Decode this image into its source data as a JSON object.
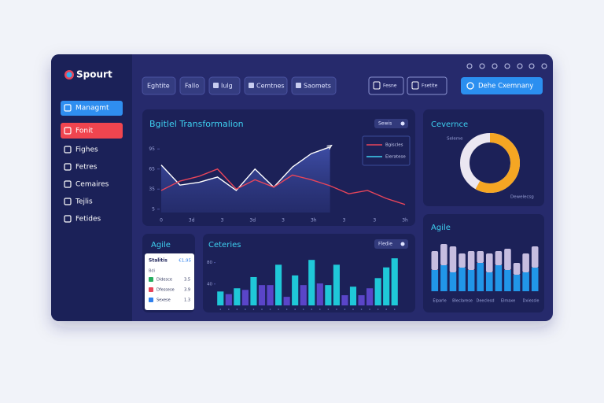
{
  "brand": "Spourt",
  "sidebar": [
    {
      "label": "Managmt",
      "state": "primary"
    },
    {
      "label": "Fonit",
      "state": "alert"
    },
    {
      "label": "Fighes"
    },
    {
      "label": "Fetres"
    },
    {
      "label": "Cemaires"
    },
    {
      "label": "Tejlis"
    },
    {
      "label": "Fetides"
    }
  ],
  "toolbar": {
    "tabs": [
      "Eghtite",
      "Fallo",
      "Iulg",
      "Cemtnes",
      "Saomets"
    ],
    "icon_buttons": [
      "Fesne",
      "Fsetite"
    ],
    "action": "Dehe Cxemnany"
  },
  "line_panel": {
    "title": "Bgitlel  Transformalion",
    "filter": "Sewis",
    "ylim": [
      0,
      100
    ],
    "yticks": [
      5,
      35,
      65,
      95
    ],
    "x_labels": [
      "0",
      "3d",
      "3",
      "3d",
      "3",
      "3h",
      "3",
      "3",
      "3h"
    ],
    "series": [
      {
        "name": "Eleratese",
        "color": "#ffffff",
        "area": true,
        "values": [
          71,
          41,
          45,
          53,
          33,
          65,
          38,
          68,
          88,
          98
        ]
      },
      {
        "name": "Bgiscles",
        "color": "#e8455a",
        "values": [
          33,
          47,
          54,
          65,
          35,
          49,
          38,
          56,
          49,
          40,
          28,
          33,
          21,
          12
        ]
      }
    ]
  },
  "donut_panel": {
    "title": "Cevernce",
    "value": 58,
    "color": "#f5a623",
    "rest_color": "#ebe7f1",
    "labels": [
      "Seleme",
      "Dewelecsg"
    ]
  },
  "agile_card": {
    "title": "Agile",
    "header": "Stalitis",
    "header_value": "€1,95",
    "subheader": "Bdi",
    "rows": [
      {
        "label": "Didesce",
        "value": 3.5,
        "color": "#27ae60"
      },
      {
        "label": "Dfessese",
        "value": 3.9,
        "color": "#e8455a"
      },
      {
        "label": "Sexese",
        "value": 1.3,
        "color": "#2f80ed"
      }
    ]
  },
  "bar_panel": {
    "title": "Ceteries",
    "filter": "Fledie",
    "ylim": [
      0,
      100
    ],
    "yticks": [
      40,
      80
    ],
    "values": [
      26,
      21,
      32,
      29,
      53,
      38,
      38,
      76,
      16,
      56,
      38,
      85,
      41,
      38,
      76,
      19,
      35,
      19,
      32,
      51,
      71,
      88
    ],
    "colors": [
      "#1fc8d8",
      "#5a45c8",
      "#1fc8d8",
      "#5a45c8",
      "#1fc8d8",
      "#5a45c8",
      "#5a45c8",
      "#1fc8d8",
      "#5a45c8",
      "#1fc8d8",
      "#5a45c8",
      "#1fc8d8",
      "#5a45c8",
      "#1fc8d8",
      "#1fc8d8",
      "#5a45c8",
      "#1fc8d8",
      "#5a45c8",
      "#5a45c8",
      "#1fc8d8",
      "#1fc8d8",
      "#1fc8d8"
    ]
  },
  "stack_panel": {
    "title": "Agile",
    "ylim": [
      0,
      100
    ],
    "series": [
      {
        "name": "base",
        "color": "#2196e8",
        "values": [
          45,
          55,
          40,
          50,
          45,
          60,
          40,
          55,
          45,
          35,
          40,
          50
        ]
      },
      {
        "name": "top",
        "color": "#c6bde0",
        "values": [
          40,
          45,
          55,
          30,
          40,
          25,
          40,
          30,
          45,
          25,
          40,
          45
        ]
      }
    ],
    "x_labels": [
      "Elparle",
      "Bleclarese",
      "Deeclesd",
      "Elmaxe",
      "Dxiessle"
    ]
  }
}
